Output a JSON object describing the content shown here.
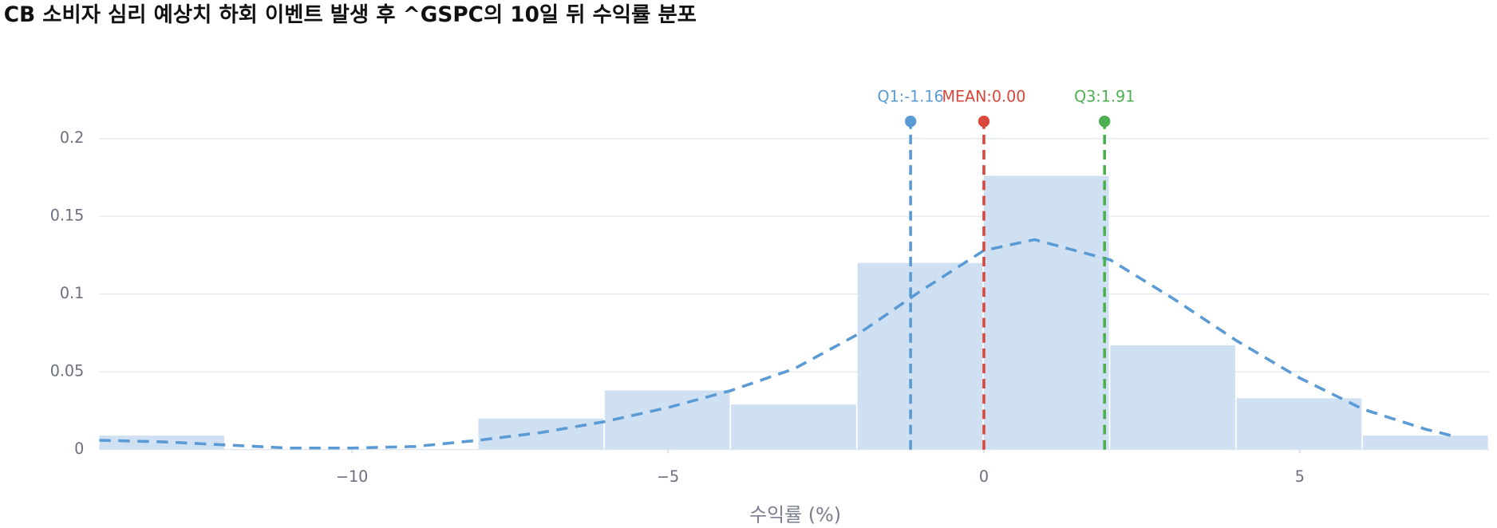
{
  "chart_data": {
    "type": "histogram",
    "title": "CB 소비자 심리 예상치 하회 이벤트 발생 후 ^GSPC의 10일 뒤 수익률 분포",
    "xlabel": "수익률 (%)",
    "bins": [
      -14,
      -12,
      -10,
      -8,
      -6,
      -4,
      -2,
      0,
      2,
      4,
      6,
      8
    ],
    "values": [
      0.009,
      0,
      0,
      0.02,
      0.038,
      0.029,
      0.12,
      0.176,
      0.067,
      0.033,
      0.009
    ],
    "color": "#cfe0f2",
    "curve": {
      "x": [
        -14,
        -13,
        -12,
        -11,
        -10,
        -9,
        -8,
        -7,
        -6,
        -5,
        -4,
        -3,
        -2,
        -1,
        0,
        0.8,
        2,
        3,
        4,
        5,
        6,
        7,
        7.5
      ],
      "values": [
        0.006,
        0.005,
        0.003,
        0.001,
        0.001,
        0.002,
        0.006,
        0.011,
        0.018,
        0.027,
        0.038,
        0.052,
        0.074,
        0.102,
        0.128,
        0.135,
        0.122,
        0.097,
        0.07,
        0.046,
        0.026,
        0.013,
        0.008
      ],
      "color": "#5b9bd5"
    },
    "lines": [
      {
        "label": "Q1:-1.16",
        "value": -1.16,
        "color": "#5b9bd5"
      },
      {
        "label": "MEAN:0.00",
        "value": 0.0,
        "color": "#d9483b"
      },
      {
        "label": "Q3:1.91",
        "value": 1.91,
        "color": "#4caf50"
      }
    ],
    "xlim": [
      -14,
      8
    ],
    "ylim": [
      0,
      0.2
    ],
    "xticks": [
      {
        "value": -10,
        "label": "−10"
      },
      {
        "value": -5,
        "label": "−5"
      },
      0,
      5
    ],
    "yticks": [
      0,
      0.05,
      0.1,
      0.15,
      0.2
    ],
    "grid": true
  }
}
